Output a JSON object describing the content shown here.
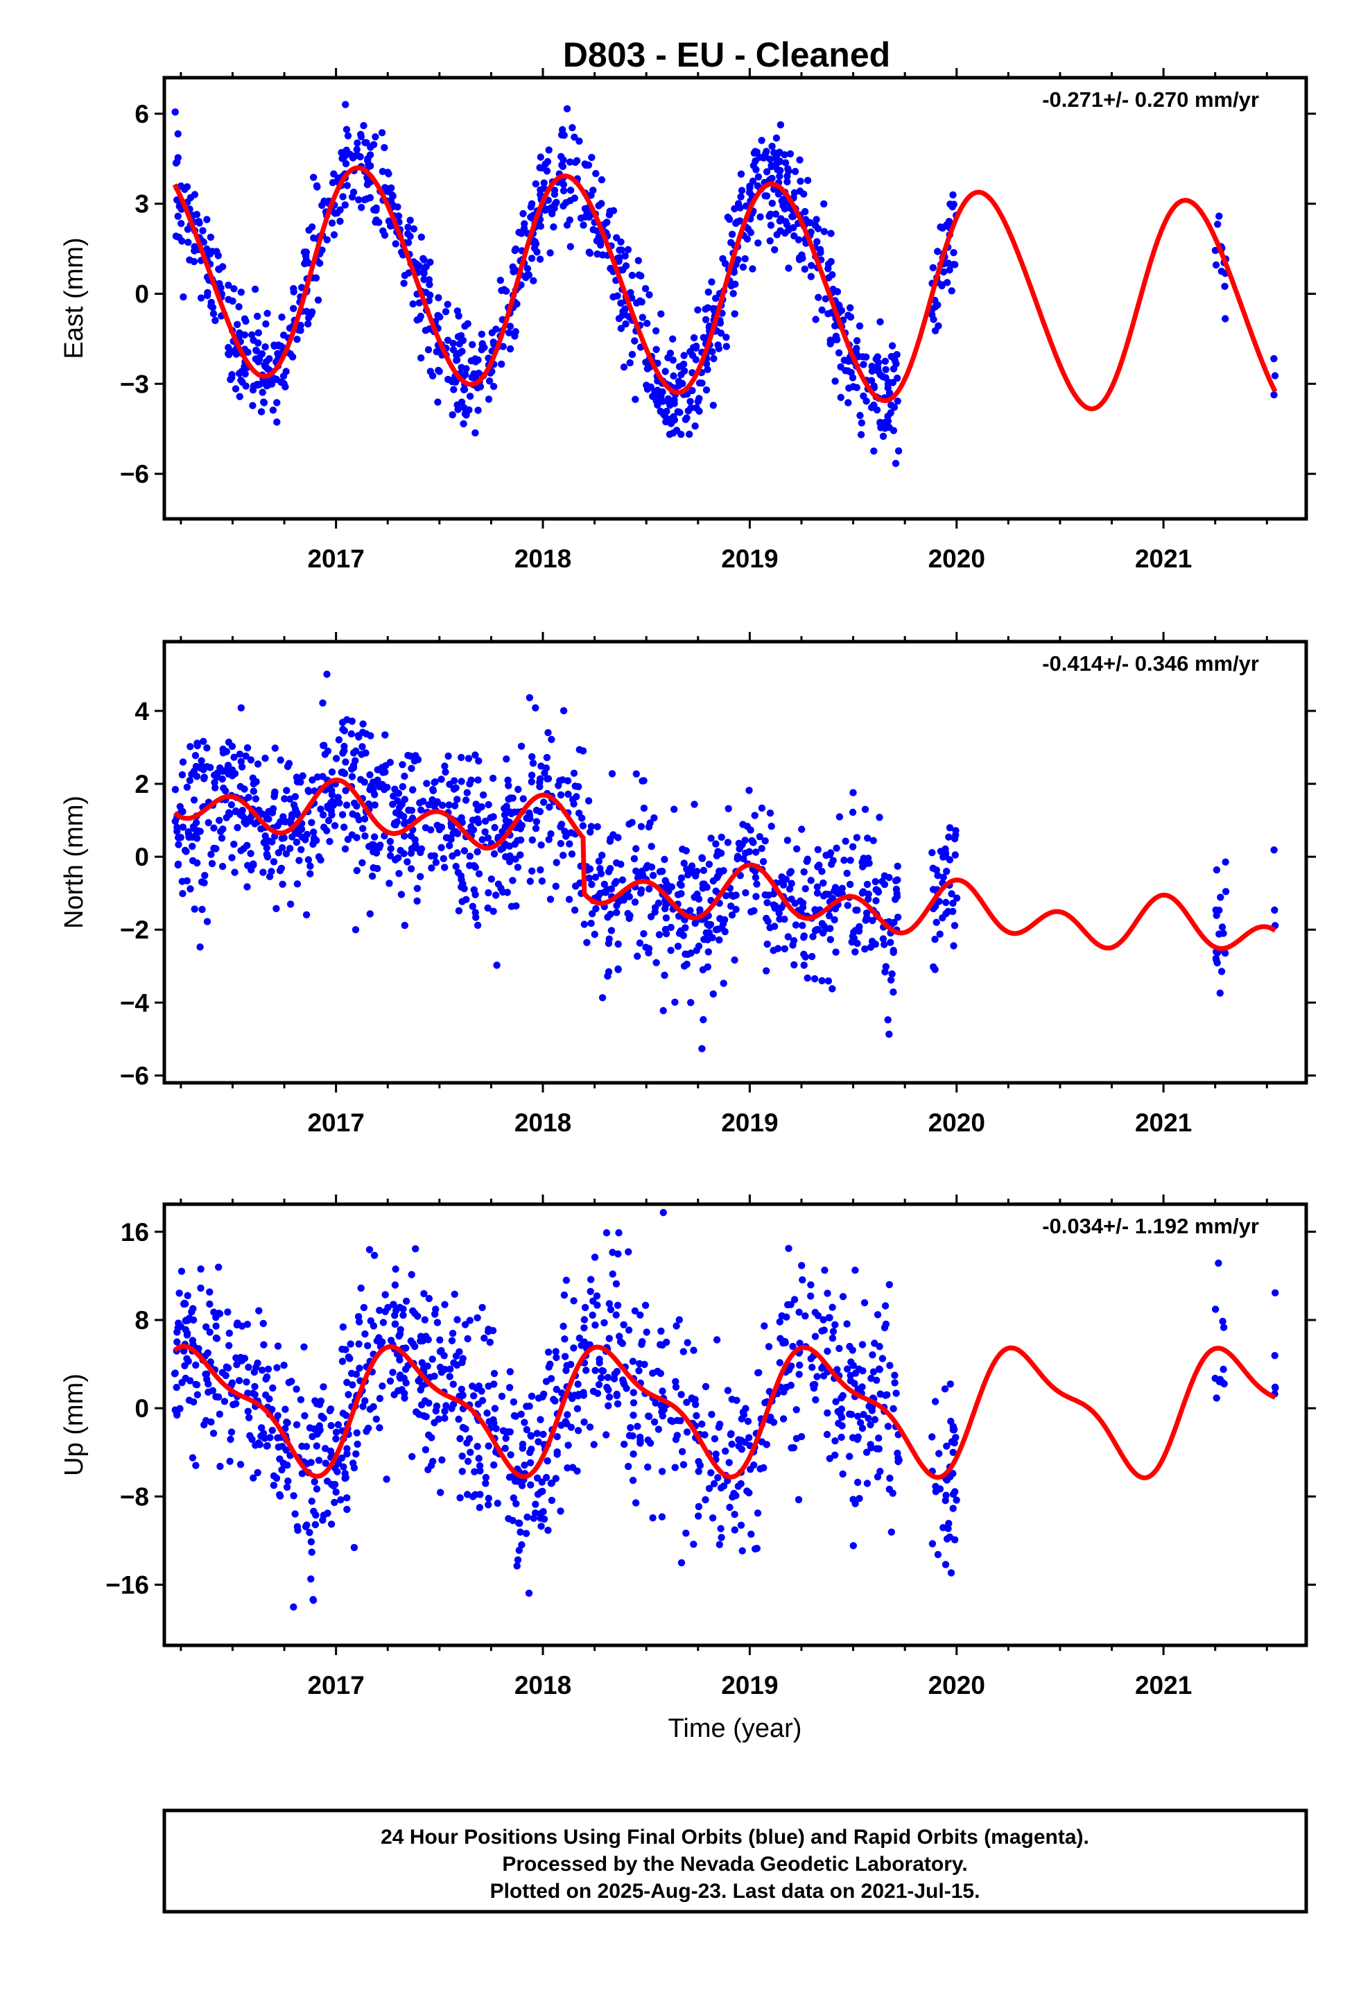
{
  "title": "D803  - EU - Cleaned",
  "x_axis_label": "Time (year)",
  "footer": {
    "line1": "24 Hour Positions Using Final Orbits (blue) and Rapid Orbits (magenta).",
    "line2": "Processed by the Nevada Geodetic Laboratory.",
    "line3": "Plotted on 2025-Aug-23. Last data on 2021-Jul-15."
  },
  "colors": {
    "points": "#0000ff",
    "model": "#ff0000",
    "axes": "#000000"
  },
  "chart_data": [
    {
      "type": "scatter",
      "ylabel": "East (mm)",
      "rate_label": "-0.271+/- 0.270 mm/yr",
      "xlim": [
        2016.17,
        2021.69
      ],
      "ylim": [
        -7.5,
        7.2
      ],
      "yticks": [
        -6,
        -3,
        0,
        3,
        6
      ],
      "xticks": [
        2017,
        2018,
        2019,
        2020,
        2021
      ],
      "grid": false,
      "model": {
        "offset": 0.3,
        "trend": -0.271,
        "amp1": 3.5,
        "phase1": 0.13,
        "amp2": 0.25,
        "phase2": 0.0
      },
      "data_ranges": [
        [
          2016.22,
          2019.72
        ],
        [
          2019.88,
          2020.0
        ],
        [
          2021.25,
          2021.3
        ],
        [
          2021.53,
          2021.54
        ]
      ],
      "point_count": 1250,
      "noise": 0.9
    },
    {
      "type": "scatter",
      "ylabel": "North (mm)",
      "rate_label": "-0.414+/- 0.346 mm/yr",
      "xlim": [
        2016.17,
        2021.69
      ],
      "ylim": [
        -6.2,
        5.9
      ],
      "yticks": [
        -6,
        -4,
        -2,
        0,
        2,
        4
      ],
      "xticks": [
        2017,
        2018,
        2019,
        2020,
        2021
      ],
      "grid": false,
      "model": {
        "offset": 0.6,
        "trend": -0.414,
        "amp1": 0.35,
        "phase1": 0.05,
        "amp2": 0.55,
        "phase2": 0.0,
        "step_time": 2018.2,
        "step": -1.5
      },
      "data_ranges": [
        [
          2016.22,
          2019.72
        ],
        [
          2019.88,
          2020.0
        ],
        [
          2021.25,
          2021.3
        ],
        [
          2021.53,
          2021.54
        ]
      ],
      "point_count": 1250,
      "noise": 1.1
    },
    {
      "type": "scatter",
      "ylabel": "Up (mm)",
      "rate_label": "-0.034+/- 1.192 mm/yr",
      "xlim": [
        2016.17,
        2021.69
      ],
      "ylim": [
        -21.5,
        18.5
      ],
      "yticks": [
        -16,
        -8,
        0,
        8,
        16
      ],
      "xticks": [
        2017,
        2018,
        2019,
        2020,
        2021
      ],
      "grid": false,
      "model": {
        "offset": 0.0,
        "trend": -0.034,
        "amp1": 5.0,
        "phase1": 0.35,
        "amp2": 1.8,
        "phase2": 0.2
      },
      "data_ranges": [
        [
          2016.22,
          2019.72
        ],
        [
          2019.88,
          2020.0
        ],
        [
          2021.25,
          2021.3
        ],
        [
          2021.53,
          2021.54
        ]
      ],
      "point_count": 1150,
      "noise": 4.5
    }
  ]
}
